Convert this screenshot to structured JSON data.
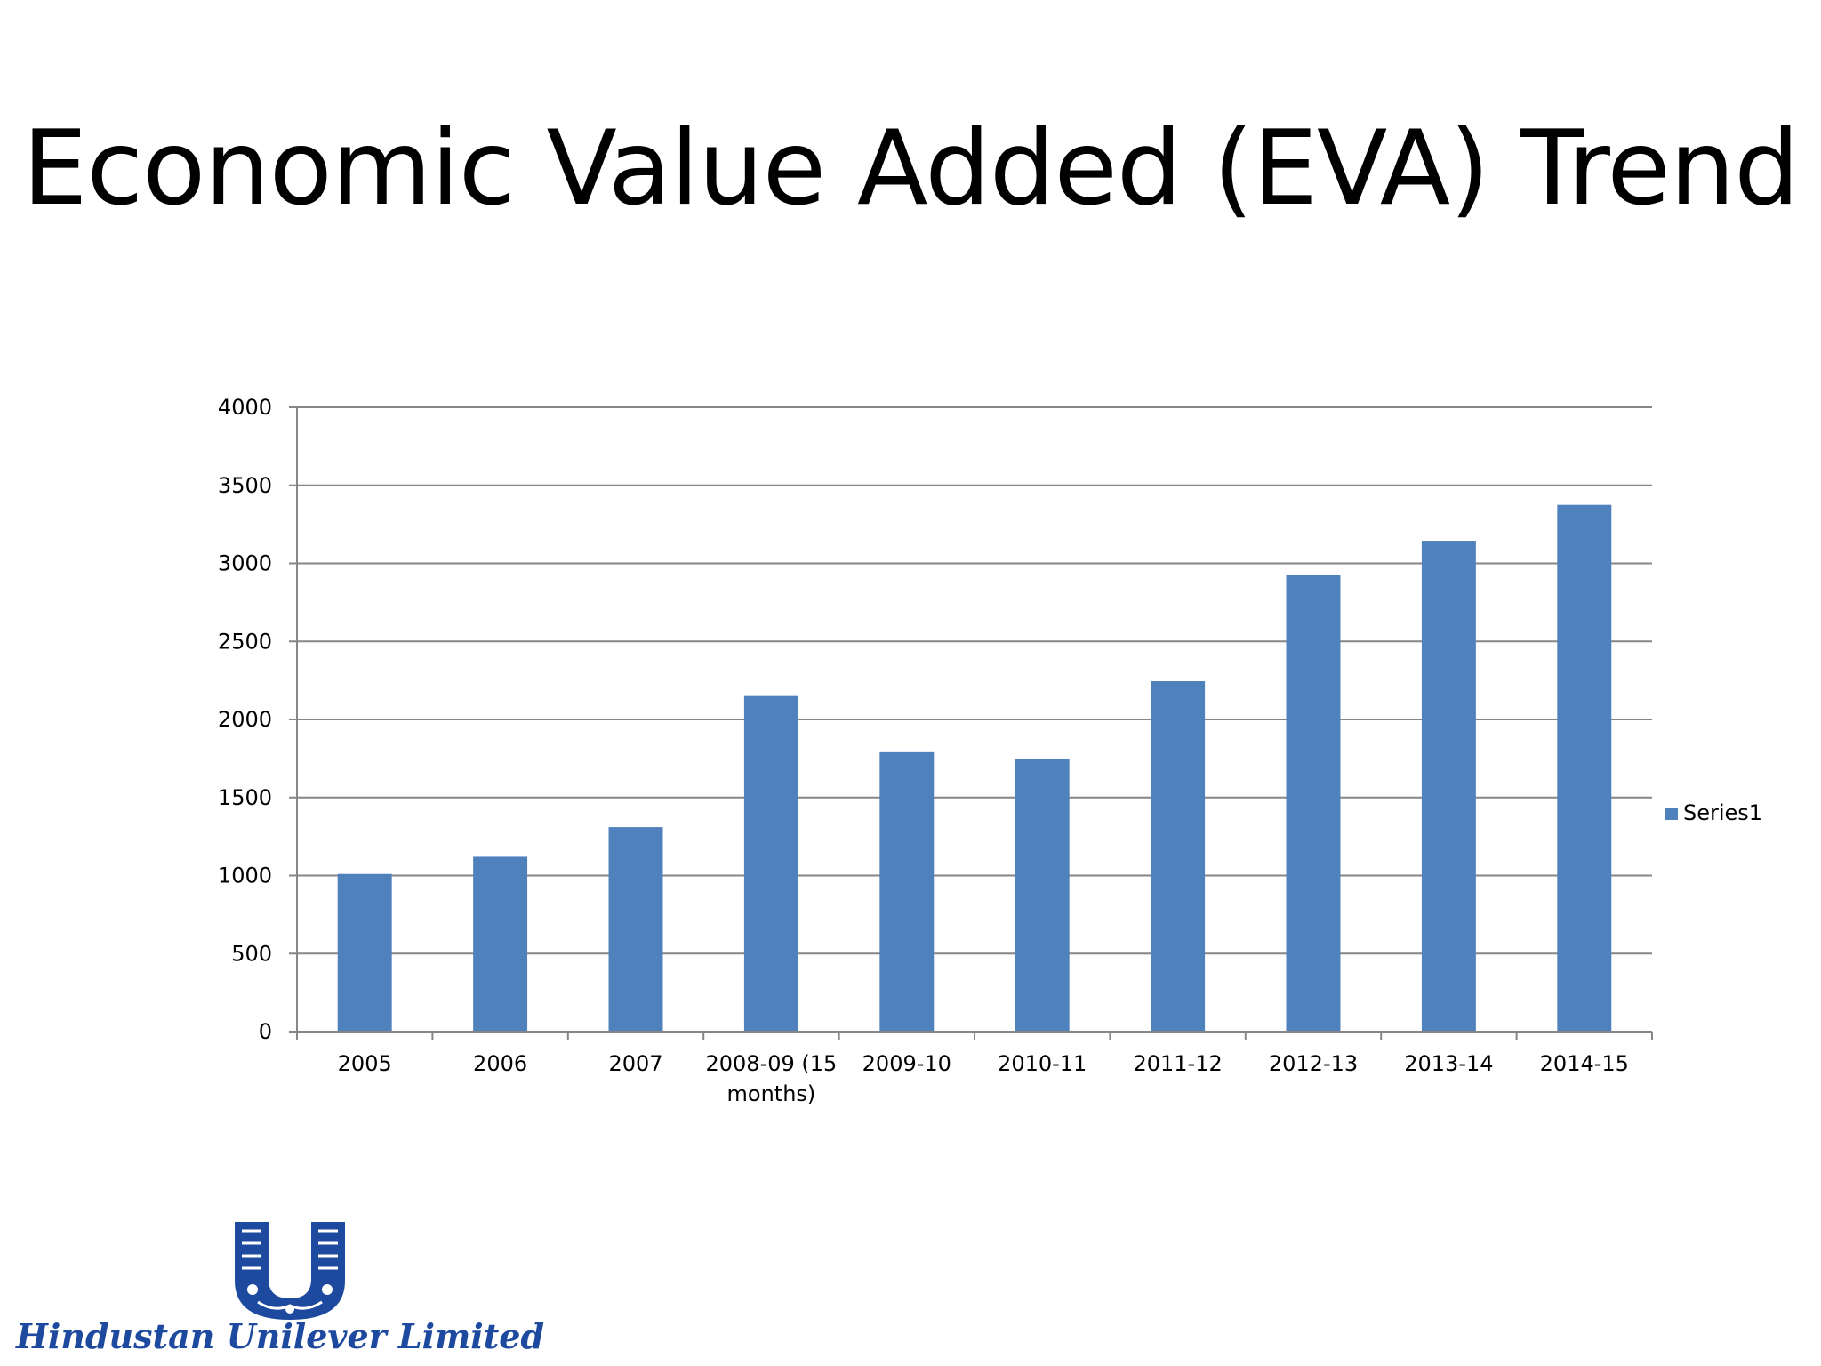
{
  "slide": {
    "title": "Economic Value Added (EVA) Trend"
  },
  "chart_data": {
    "type": "bar",
    "title": "",
    "xlabel": "",
    "ylabel": "",
    "categories": [
      "2005",
      "2006",
      "2007",
      "2008-09 (15 months)",
      "2009-10",
      "2010-11",
      "2011-12",
      "2012-13",
      "2013-14",
      "2014-15"
    ],
    "category_label_lines": [
      [
        "2005"
      ],
      [
        "2006"
      ],
      [
        "2007"
      ],
      [
        "2008-09 (15",
        "months)"
      ],
      [
        "2009-10"
      ],
      [
        "2010-11"
      ],
      [
        "2011-12"
      ],
      [
        "2012-13"
      ],
      [
        "2013-14"
      ],
      [
        "2014-15"
      ]
    ],
    "series": [
      {
        "name": "Series1",
        "values": [
          1010,
          1120,
          1310,
          2150,
          1790,
          1745,
          2245,
          2925,
          3145,
          3375
        ],
        "color": "#4f81bd"
      }
    ],
    "ylim": [
      0,
      4000
    ],
    "yticks": [
      0,
      500,
      1000,
      1500,
      2000,
      2500,
      3000,
      3500,
      4000
    ],
    "grid": true,
    "gridColor": "#868686",
    "legend": "right"
  },
  "logo": {
    "text": "Hindustan Unilever Limited",
    "color": "#1d4a9e",
    "icon": "unilever-u-logo-icon"
  }
}
